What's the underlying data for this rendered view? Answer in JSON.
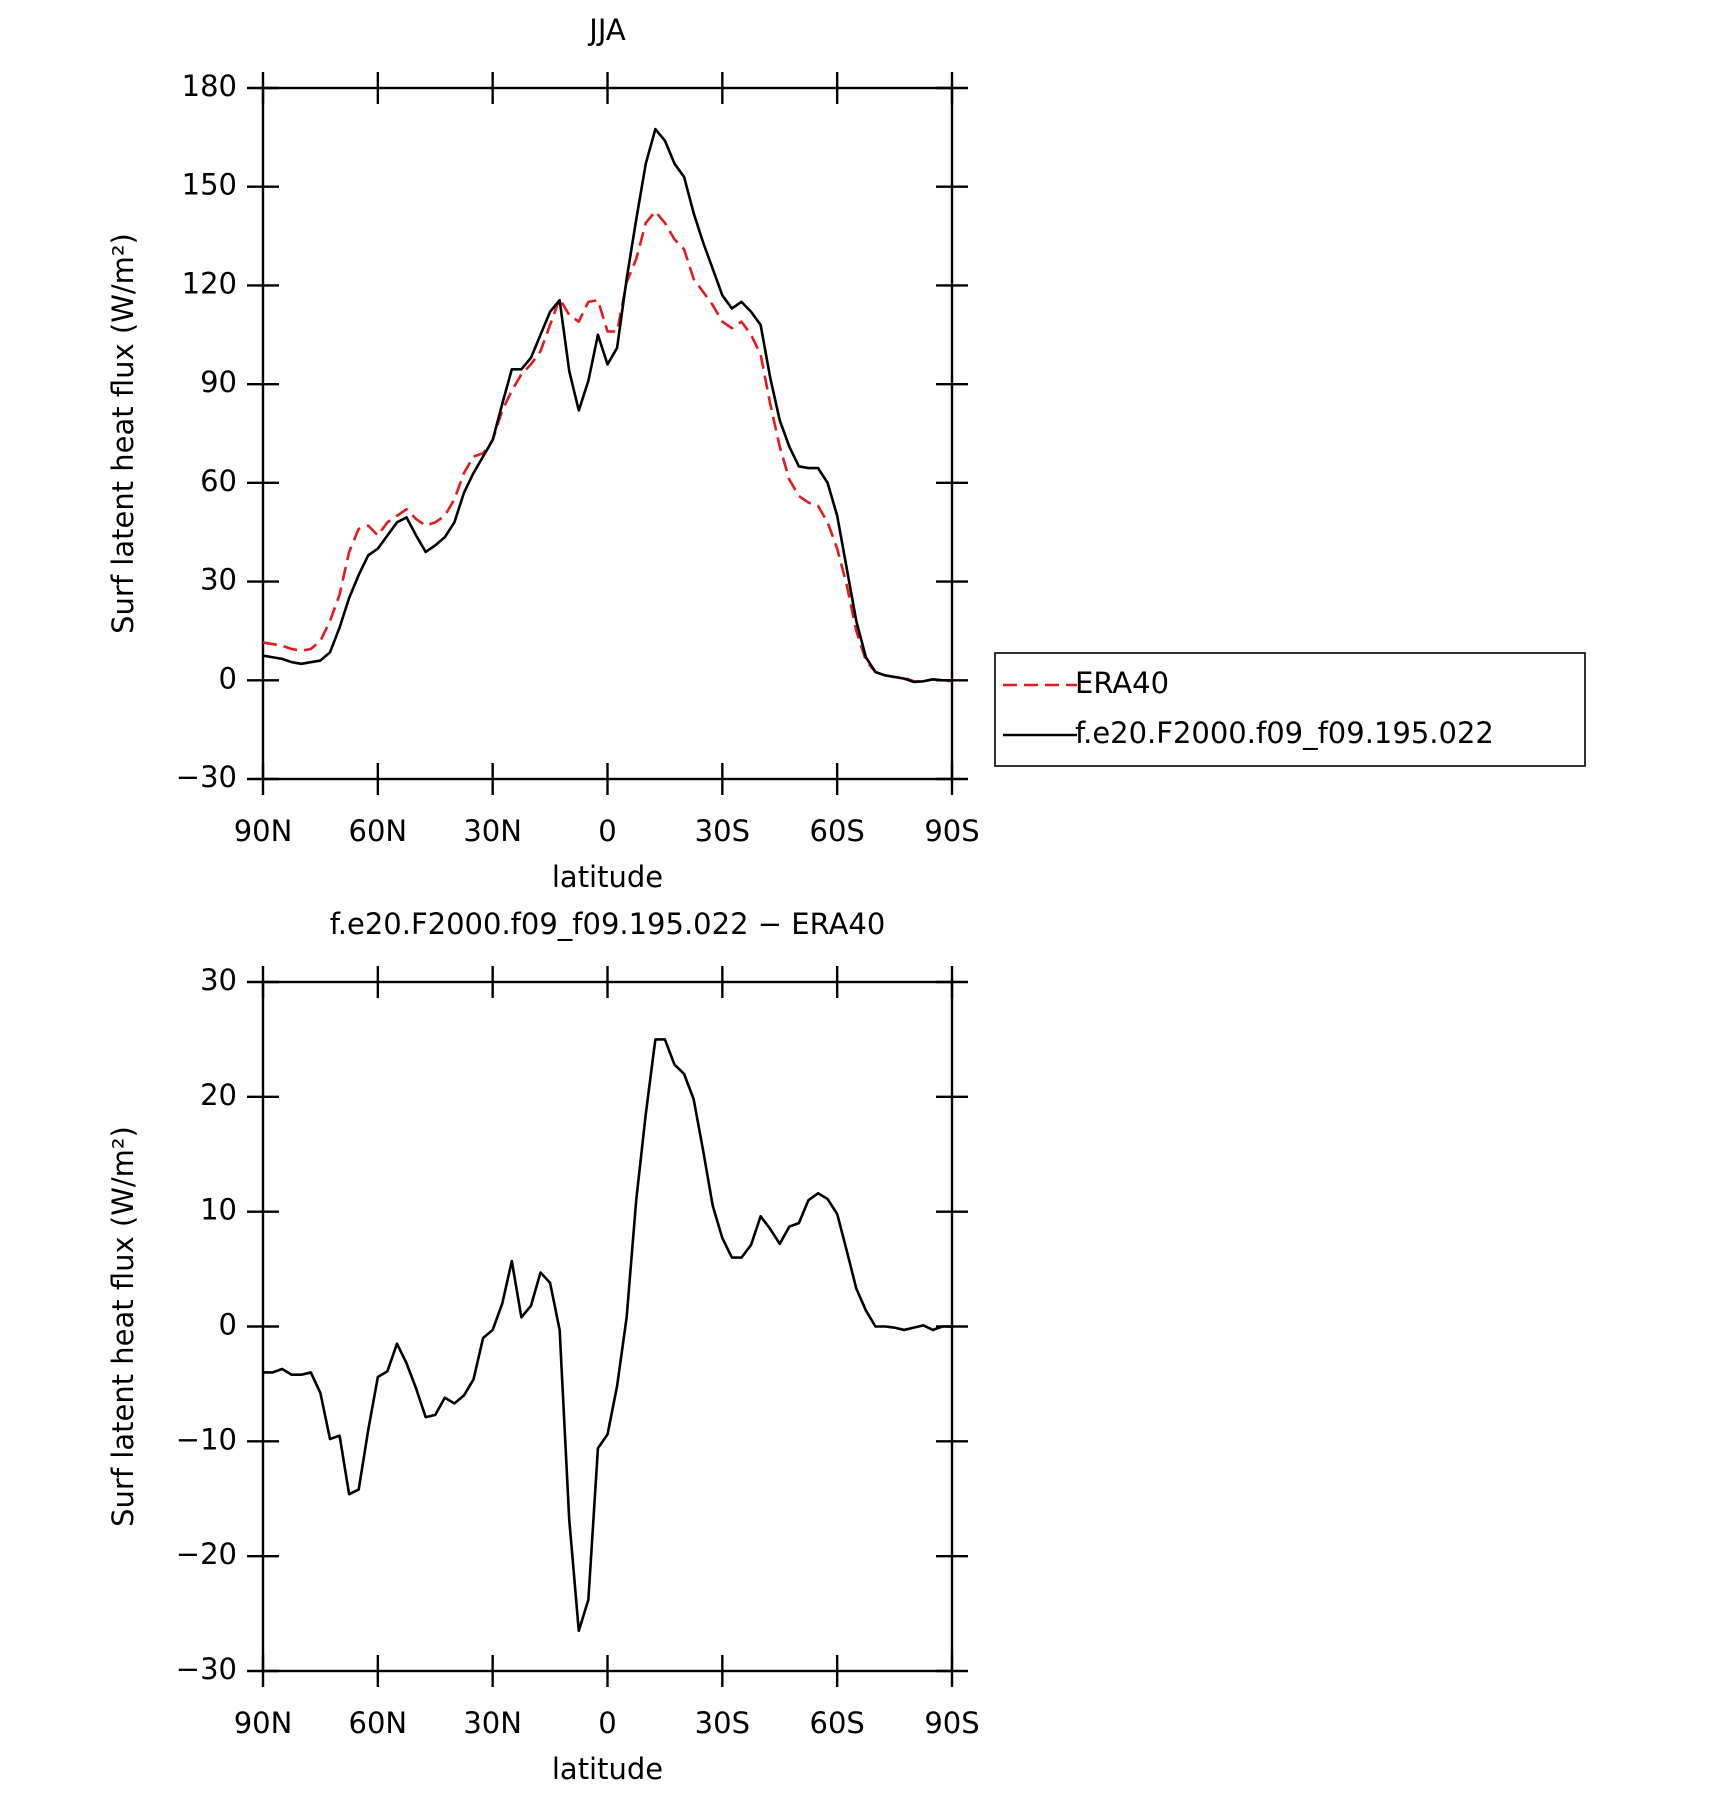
{
  "chart_data": [
    {
      "type": "line",
      "title": "JJA",
      "x_label": "latitude",
      "y_label": "Surf latent heat flux (W/m²)",
      "x": [
        90,
        87.5,
        85,
        82.5,
        80,
        77.5,
        75,
        72.5,
        70,
        67.5,
        65,
        62.5,
        60,
        57.5,
        55,
        52.5,
        50,
        47.5,
        45,
        42.5,
        40,
        37.5,
        35,
        32.5,
        30,
        27.5,
        25,
        22.5,
        20,
        17.5,
        15,
        12.5,
        10,
        7.5,
        5,
        2.5,
        0,
        -2.5,
        -5,
        -7.5,
        -10,
        -12.5,
        -15,
        -17.5,
        -20,
        -22.5,
        -25,
        -27.5,
        -30,
        -32.5,
        -35,
        -37.5,
        -40,
        -42.5,
        -45,
        -47.5,
        -50,
        -52.5,
        -55,
        -57.5,
        -60,
        -62.5,
        -65,
        -67.5,
        -70,
        -72.5,
        -75,
        -77.5,
        -80,
        -82.5,
        -85,
        -87.5,
        -90
      ],
      "series": [
        {
          "name": "ERA40",
          "color": "#e41a1c",
          "dash": true,
          "values": [
            11.5,
            11,
            10.5,
            9.5,
            9,
            9.5,
            12,
            18,
            26,
            39,
            46,
            47,
            44,
            48,
            50,
            52,
            49,
            47,
            48,
            50,
            55,
            63,
            68,
            69,
            73,
            82,
            88,
            93,
            96,
            100,
            108,
            116,
            111,
            109,
            115,
            115.5,
            106,
            106,
            121,
            128,
            139,
            142.5,
            139,
            134,
            131,
            122,
            118,
            114,
            109,
            107,
            109,
            105,
            99,
            84,
            71,
            61,
            56,
            54,
            53,
            48,
            40,
            29,
            15,
            6,
            2.5,
            1.5,
            1,
            0.8,
            -0.3,
            -0.4,
            0.3,
            -0.2,
            -0.2
          ]
        },
        {
          "name": "f.e20.F2000.f09_f09.195.022",
          "color": "#000000",
          "dash": false,
          "values": [
            7.5,
            7,
            6.5,
            5.5,
            5,
            5.5,
            6,
            8.5,
            16,
            25,
            32,
            38,
            40,
            44,
            48,
            49.5,
            44,
            39,
            41,
            43.5,
            48,
            57,
            63,
            68,
            73,
            84,
            94.5,
            94.5,
            98,
            105,
            112,
            115.5,
            94,
            82,
            91,
            105,
            96,
            101,
            122,
            140,
            157,
            167.5,
            164,
            157,
            153,
            142,
            133,
            125,
            117,
            113,
            115,
            112,
            108,
            92,
            79,
            71,
            65,
            64.5,
            64.5,
            60,
            50,
            34,
            18,
            7,
            2.5,
            1.5,
            1,
            0.5,
            -0.5,
            -0.3,
            0.3,
            0,
            0
          ]
        }
      ],
      "xlim": [
        90,
        -90
      ],
      "xticks": [
        {
          "value": 90,
          "label": "90N"
        },
        {
          "value": 60,
          "label": "60N"
        },
        {
          "value": 30,
          "label": "30N"
        },
        0,
        {
          "value": -30,
          "label": "30S"
        },
        {
          "value": -60,
          "label": "60S"
        },
        {
          "value": -90,
          "label": "90S"
        }
      ],
      "ylim": [
        -30,
        180
      ],
      "yticks": [
        {
          "value": -30,
          "label": "−30"
        },
        0,
        30,
        60,
        90,
        120,
        150,
        180
      ],
      "legend": "right"
    },
    {
      "type": "line",
      "title": "f.e20.F2000.f09_f09.195.022 − ERA40",
      "x_label": "latitude",
      "y_label": "Surf latent heat flux (W/m²)",
      "x": [
        90,
        87.5,
        85,
        82.5,
        80,
        77.5,
        75,
        72.5,
        70,
        67.5,
        65,
        62.5,
        60,
        57.5,
        55,
        52.5,
        50,
        47.5,
        45,
        42.5,
        40,
        37.5,
        35,
        32.5,
        30,
        27.5,
        25,
        22.5,
        20,
        17.5,
        15,
        12.5,
        10,
        7.5,
        5,
        2.5,
        0,
        -2.5,
        -5,
        -7.5,
        -10,
        -12.5,
        -15,
        -17.5,
        -20,
        -22.5,
        -25,
        -27.5,
        -30,
        -32.5,
        -35,
        -37.5,
        -40,
        -42.5,
        -45,
        -47.5,
        -50,
        -52.5,
        -55,
        -57.5,
        -60,
        -62.5,
        -65,
        -67.5,
        -70,
        -72.5,
        -75,
        -77.5,
        -80,
        -82.5,
        -85,
        -87.5,
        -90
      ],
      "values": [
        -4,
        -4,
        -3.7,
        -4.2,
        -4.2,
        -4,
        -5.8,
        -9.8,
        -9.5,
        -14.6,
        -14.2,
        -9,
        -4.4,
        -3.9,
        -1.5,
        -3.2,
        -5.4,
        -7.9,
        -7.7,
        -6.2,
        -6.7,
        -6,
        -4.6,
        -1,
        -0.3,
        2,
        5.7,
        0.8,
        1.8,
        4.7,
        3.8,
        -0.3,
        -16.8,
        -26.5,
        -23.8,
        -10.6,
        -9.4,
        -5.2,
        0.8,
        11,
        18.5,
        25,
        25,
        22.8,
        22,
        19.8,
        15.3,
        10.5,
        7.7,
        6,
        6,
        7.1,
        9.6,
        8.5,
        7.2,
        8.7,
        9,
        11,
        11.6,
        11.1,
        9.8,
        6.6,
        3.3,
        1.4,
        0,
        0,
        -0.1,
        -0.3,
        -0.1,
        0.1,
        -0.3,
        0,
        0
      ],
      "color": "#000000",
      "xlim": [
        90,
        -90
      ],
      "xticks": [
        {
          "value": 90,
          "label": "90N"
        },
        {
          "value": 60,
          "label": "60N"
        },
        {
          "value": 30,
          "label": "30N"
        },
        0,
        {
          "value": -30,
          "label": "30S"
        },
        {
          "value": -60,
          "label": "60S"
        },
        {
          "value": -90,
          "label": "90S"
        }
      ],
      "ylim": [
        -30,
        30
      ],
      "yticks": [
        {
          "value": -30,
          "label": "−30"
        },
        {
          "value": -20,
          "label": "−20"
        },
        {
          "value": -10,
          "label": "−10"
        },
        0,
        10,
        20,
        30
      ]
    }
  ]
}
